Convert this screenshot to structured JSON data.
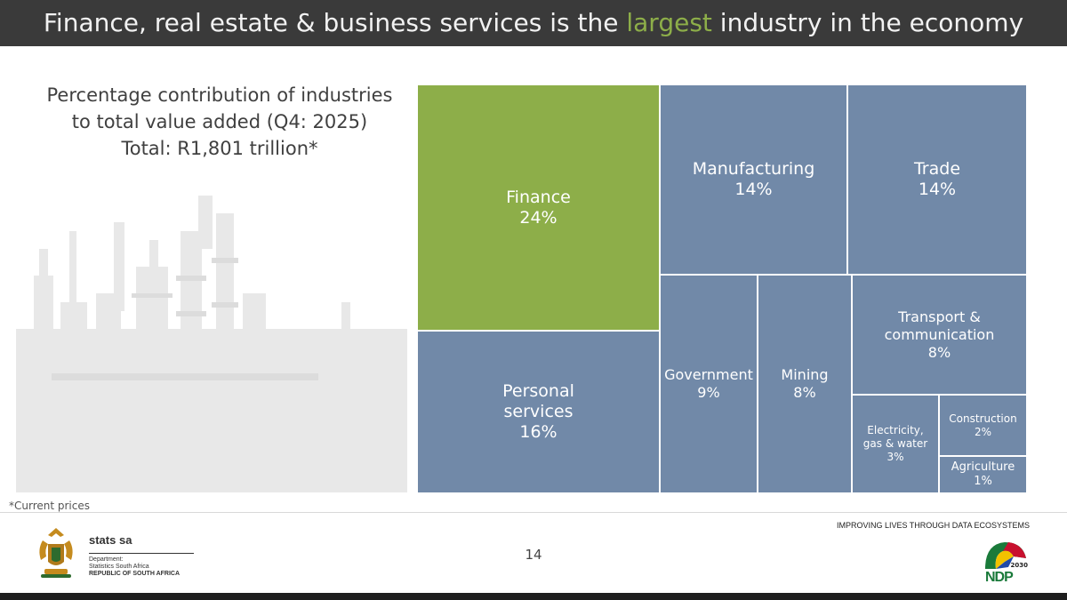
{
  "title": {
    "before": "Finance, real estate & business services is the ",
    "highlight": "largest",
    "after": " industry in the economy"
  },
  "subtitle_lines": [
    "Percentage contribution of industries",
    "to total value added (Q4: 2025)",
    "Total: R1,801 trillion*"
  ],
  "footnote": "*Current prices",
  "tagline": "IMPROVING LIVES THROUGH DATA ECOSYSTEMS",
  "page_number": "14",
  "logo": {
    "brand": "stats sa",
    "line1": "Department:",
    "line2": "Statistics South Africa",
    "line3": "REPUBLIC OF SOUTH AFRICA"
  },
  "ndp": {
    "year": "2030",
    "word": "NDP"
  },
  "colors": {
    "highlight": "#8dae49",
    "tile": "#7189a8",
    "title_bg": "#3a3a3a"
  },
  "chart_data": {
    "type": "treemap",
    "title": "Percentage contribution of industries to total value added (Q4: 2025)",
    "unit": "%",
    "items": [
      {
        "lines": [
          "Finance"
        ],
        "value_label": "24%",
        "value": 24,
        "highlight": true
      },
      {
        "lines": [
          "Personal",
          "services"
        ],
        "value_label": "16%",
        "value": 16
      },
      {
        "lines": [
          "Manufacturing"
        ],
        "value_label": "14%",
        "value": 14
      },
      {
        "lines": [
          "Trade"
        ],
        "value_label": "14%",
        "value": 14
      },
      {
        "lines": [
          "Government"
        ],
        "value_label": "9%",
        "value": 9
      },
      {
        "lines": [
          "Mining"
        ],
        "value_label": "8%",
        "value": 8
      },
      {
        "lines": [
          "Transport &",
          "communication"
        ],
        "value_label": "8%",
        "value": 8
      },
      {
        "lines": [
          "Electricity,",
          "gas & water"
        ],
        "value_label": "3%",
        "value": 3
      },
      {
        "lines": [
          "Construction"
        ],
        "value_label": "2%",
        "value": 2
      },
      {
        "lines": [
          "Agriculture"
        ],
        "value_label": "1%",
        "value": 1
      }
    ]
  }
}
